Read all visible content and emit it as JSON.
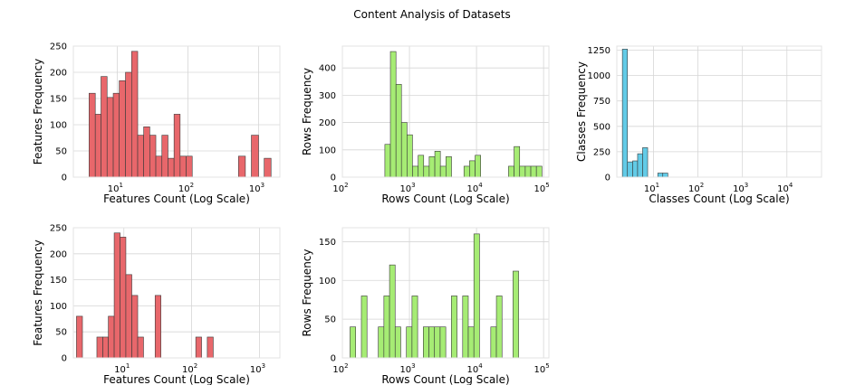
{
  "figure": {
    "title": "Content Analysis of Datasets"
  },
  "chart_data": [
    {
      "id": "features-top",
      "type": "bar",
      "xscale": "log",
      "xlabel": "Features Count (Log Scale)",
      "ylabel": "Features Frequency",
      "xlim": [
        2.4,
        2000
      ],
      "ylim": [
        0,
        250
      ],
      "xticks": [
        {
          "value": 10,
          "base": "10",
          "exp": "1"
        },
        {
          "value": 100,
          "base": "10",
          "exp": "2"
        },
        {
          "value": 1000,
          "base": "10",
          "exp": "3"
        }
      ],
      "yticks": [
        "0",
        "50",
        "100",
        "150",
        "200",
        "250"
      ],
      "color": "#e8676b",
      "bins": [
        {
          "x0": 4.0,
          "x1": 4.9,
          "y": 160
        },
        {
          "x0": 4.9,
          "x1": 5.9,
          "y": 120
        },
        {
          "x0": 5.9,
          "x1": 7.2,
          "y": 192
        },
        {
          "x0": 7.2,
          "x1": 8.8,
          "y": 152
        },
        {
          "x0": 8.8,
          "x1": 10.7,
          "y": 160
        },
        {
          "x0": 10.7,
          "x1": 13.1,
          "y": 184
        },
        {
          "x0": 13.1,
          "x1": 16.0,
          "y": 200
        },
        {
          "x0": 16.0,
          "x1": 19.5,
          "y": 240
        },
        {
          "x0": 19.5,
          "x1": 23.7,
          "y": 80
        },
        {
          "x0": 23.7,
          "x1": 28.9,
          "y": 96
        },
        {
          "x0": 28.9,
          "x1": 35.2,
          "y": 80
        },
        {
          "x0": 35.2,
          "x1": 42.9,
          "y": 40
        },
        {
          "x0": 42.9,
          "x1": 52.3,
          "y": 80
        },
        {
          "x0": 52.3,
          "x1": 63.7,
          "y": 36
        },
        {
          "x0": 63.7,
          "x1": 77.6,
          "y": 120
        },
        {
          "x0": 77.6,
          "x1": 94.6,
          "y": 40
        },
        {
          "x0": 94.6,
          "x1": 115.2,
          "y": 40
        },
        {
          "x0": 520,
          "x1": 650,
          "y": 40
        },
        {
          "x0": 790,
          "x1": 1000,
          "y": 80
        },
        {
          "x0": 1200,
          "x1": 1500,
          "y": 36
        }
      ]
    },
    {
      "id": "rows-top",
      "type": "bar",
      "xscale": "log",
      "xlabel": "Rows Count (Log Scale)",
      "ylabel": "Rows Frequency",
      "xlim": [
        100,
        120000
      ],
      "ylim": [
        0,
        480
      ],
      "xticks": [
        {
          "value": 100,
          "base": "10",
          "exp": "2"
        },
        {
          "value": 1000,
          "base": "10",
          "exp": "3"
        },
        {
          "value": 10000,
          "base": "10",
          "exp": "4"
        },
        {
          "value": 100000,
          "base": "10",
          "exp": "5"
        }
      ],
      "yticks": [
        "0",
        "100",
        "200",
        "300",
        "400"
      ],
      "color": "#a6ec74",
      "bins": [
        {
          "x0": 430,
          "x1": 520,
          "y": 120
        },
        {
          "x0": 520,
          "x1": 630,
          "y": 460
        },
        {
          "x0": 630,
          "x1": 760,
          "y": 340
        },
        {
          "x0": 760,
          "x1": 920,
          "y": 200
        },
        {
          "x0": 920,
          "x1": 1110,
          "y": 155
        },
        {
          "x0": 1110,
          "x1": 1350,
          "y": 40
        },
        {
          "x0": 1350,
          "x1": 1630,
          "y": 80
        },
        {
          "x0": 1630,
          "x1": 1970,
          "y": 40
        },
        {
          "x0": 1970,
          "x1": 2390,
          "y": 75
        },
        {
          "x0": 2390,
          "x1": 2890,
          "y": 95
        },
        {
          "x0": 2890,
          "x1": 3500,
          "y": 40
        },
        {
          "x0": 3500,
          "x1": 4240,
          "y": 75
        },
        {
          "x0": 6500,
          "x1": 7870,
          "y": 40
        },
        {
          "x0": 7870,
          "x1": 9530,
          "y": 60
        },
        {
          "x0": 9530,
          "x1": 11540,
          "y": 80
        },
        {
          "x0": 30000,
          "x1": 36300,
          "y": 40
        },
        {
          "x0": 36300,
          "x1": 44000,
          "y": 112
        },
        {
          "x0": 44000,
          "x1": 53300,
          "y": 40
        },
        {
          "x0": 53300,
          "x1": 64500,
          "y": 40
        },
        {
          "x0": 64500,
          "x1": 78100,
          "y": 40
        },
        {
          "x0": 78100,
          "x1": 94600,
          "y": 40
        }
      ]
    },
    {
      "id": "classes-top",
      "type": "bar",
      "xscale": "log",
      "xlabel": "Classes Count (Log Scale)",
      "ylabel": "Classes Frequency",
      "xlim": [
        1.5,
        60000
      ],
      "ylim": [
        0,
        1290
      ],
      "xticks": [
        {
          "value": 10,
          "base": "10",
          "exp": "1"
        },
        {
          "value": 100,
          "base": "10",
          "exp": "2"
        },
        {
          "value": 1000,
          "base": "10",
          "exp": "3"
        },
        {
          "value": 10000,
          "base": "10",
          "exp": "4"
        }
      ],
      "yticks": [
        "0",
        "250",
        "500",
        "750",
        "1000",
        "1250"
      ],
      "color": "#62cbe7",
      "bins": [
        {
          "x0": 2.0,
          "x1": 2.6,
          "y": 1260
        },
        {
          "x0": 2.6,
          "x1": 3.4,
          "y": 150
        },
        {
          "x0": 3.4,
          "x1": 4.4,
          "y": 160
        },
        {
          "x0": 4.4,
          "x1": 5.7,
          "y": 230
        },
        {
          "x0": 5.7,
          "x1": 7.4,
          "y": 290
        },
        {
          "x0": 12.5,
          "x1": 16.2,
          "y": 40
        },
        {
          "x0": 16.2,
          "x1": 21.0,
          "y": 40
        }
      ]
    },
    {
      "id": "features-bottom",
      "type": "bar",
      "xscale": "log",
      "xlabel": "Features Count (Log Scale)",
      "ylabel": "Features Frequency",
      "xlim": [
        1.8,
        2000
      ],
      "ylim": [
        0,
        250
      ],
      "xticks": [
        {
          "value": 10,
          "base": "10",
          "exp": "1"
        },
        {
          "value": 100,
          "base": "10",
          "exp": "2"
        },
        {
          "value": 1000,
          "base": "10",
          "exp": "3"
        }
      ],
      "yticks": [
        "0",
        "50",
        "100",
        "150",
        "200",
        "250"
      ],
      "color": "#e8676b",
      "bins": [
        {
          "x0": 2.0,
          "x1": 2.45,
          "y": 80
        },
        {
          "x0": 4.0,
          "x1": 4.9,
          "y": 40
        },
        {
          "x0": 4.9,
          "x1": 5.9,
          "y": 40
        },
        {
          "x0": 5.9,
          "x1": 7.2,
          "y": 80
        },
        {
          "x0": 7.2,
          "x1": 8.8,
          "y": 240
        },
        {
          "x0": 8.8,
          "x1": 10.7,
          "y": 232
        },
        {
          "x0": 10.7,
          "x1": 13.1,
          "y": 160
        },
        {
          "x0": 13.1,
          "x1": 16.0,
          "y": 120
        },
        {
          "x0": 16.0,
          "x1": 19.5,
          "y": 40
        },
        {
          "x0": 28.9,
          "x1": 35.2,
          "y": 120
        },
        {
          "x0": 115,
          "x1": 140,
          "y": 40
        },
        {
          "x0": 170,
          "x1": 208,
          "y": 40
        }
      ]
    },
    {
      "id": "rows-bottom",
      "type": "bar",
      "xscale": "log",
      "xlabel": "Rows Count (Log Scale)",
      "ylabel": "Rows Frequency",
      "xlim": [
        100,
        120000
      ],
      "ylim": [
        0,
        168
      ],
      "xticks": [
        {
          "value": 100,
          "base": "10",
          "exp": "2"
        },
        {
          "value": 1000,
          "base": "10",
          "exp": "3"
        },
        {
          "value": 10000,
          "base": "10",
          "exp": "4"
        },
        {
          "value": 100000,
          "base": "10",
          "exp": "5"
        }
      ],
      "yticks": [
        "0",
        "50",
        "100",
        "150"
      ],
      "color": "#a6ec74",
      "bins": [
        {
          "x0": 130,
          "x1": 158,
          "y": 40
        },
        {
          "x0": 192,
          "x1": 233,
          "y": 80
        },
        {
          "x0": 343,
          "x1": 416,
          "y": 40
        },
        {
          "x0": 416,
          "x1": 505,
          "y": 80
        },
        {
          "x0": 505,
          "x1": 612,
          "y": 120
        },
        {
          "x0": 612,
          "x1": 742,
          "y": 40
        },
        {
          "x0": 900,
          "x1": 1092,
          "y": 40
        },
        {
          "x0": 1092,
          "x1": 1325,
          "y": 80
        },
        {
          "x0": 1607,
          "x1": 1950,
          "y": 40
        },
        {
          "x0": 1950,
          "x1": 2365,
          "y": 40
        },
        {
          "x0": 2365,
          "x1": 2869,
          "y": 40
        },
        {
          "x0": 2869,
          "x1": 3480,
          "y": 40
        },
        {
          "x0": 4222,
          "x1": 5122,
          "y": 80
        },
        {
          "x0": 6213,
          "x1": 7537,
          "y": 80
        },
        {
          "x0": 7537,
          "x1": 9142,
          "y": 40
        },
        {
          "x0": 9142,
          "x1": 11090,
          "y": 160
        },
        {
          "x0": 16317,
          "x1": 19794,
          "y": 40
        },
        {
          "x0": 19794,
          "x1": 24011,
          "y": 80
        },
        {
          "x0": 35000,
          "x1": 42460,
          "y": 112
        }
      ]
    }
  ]
}
